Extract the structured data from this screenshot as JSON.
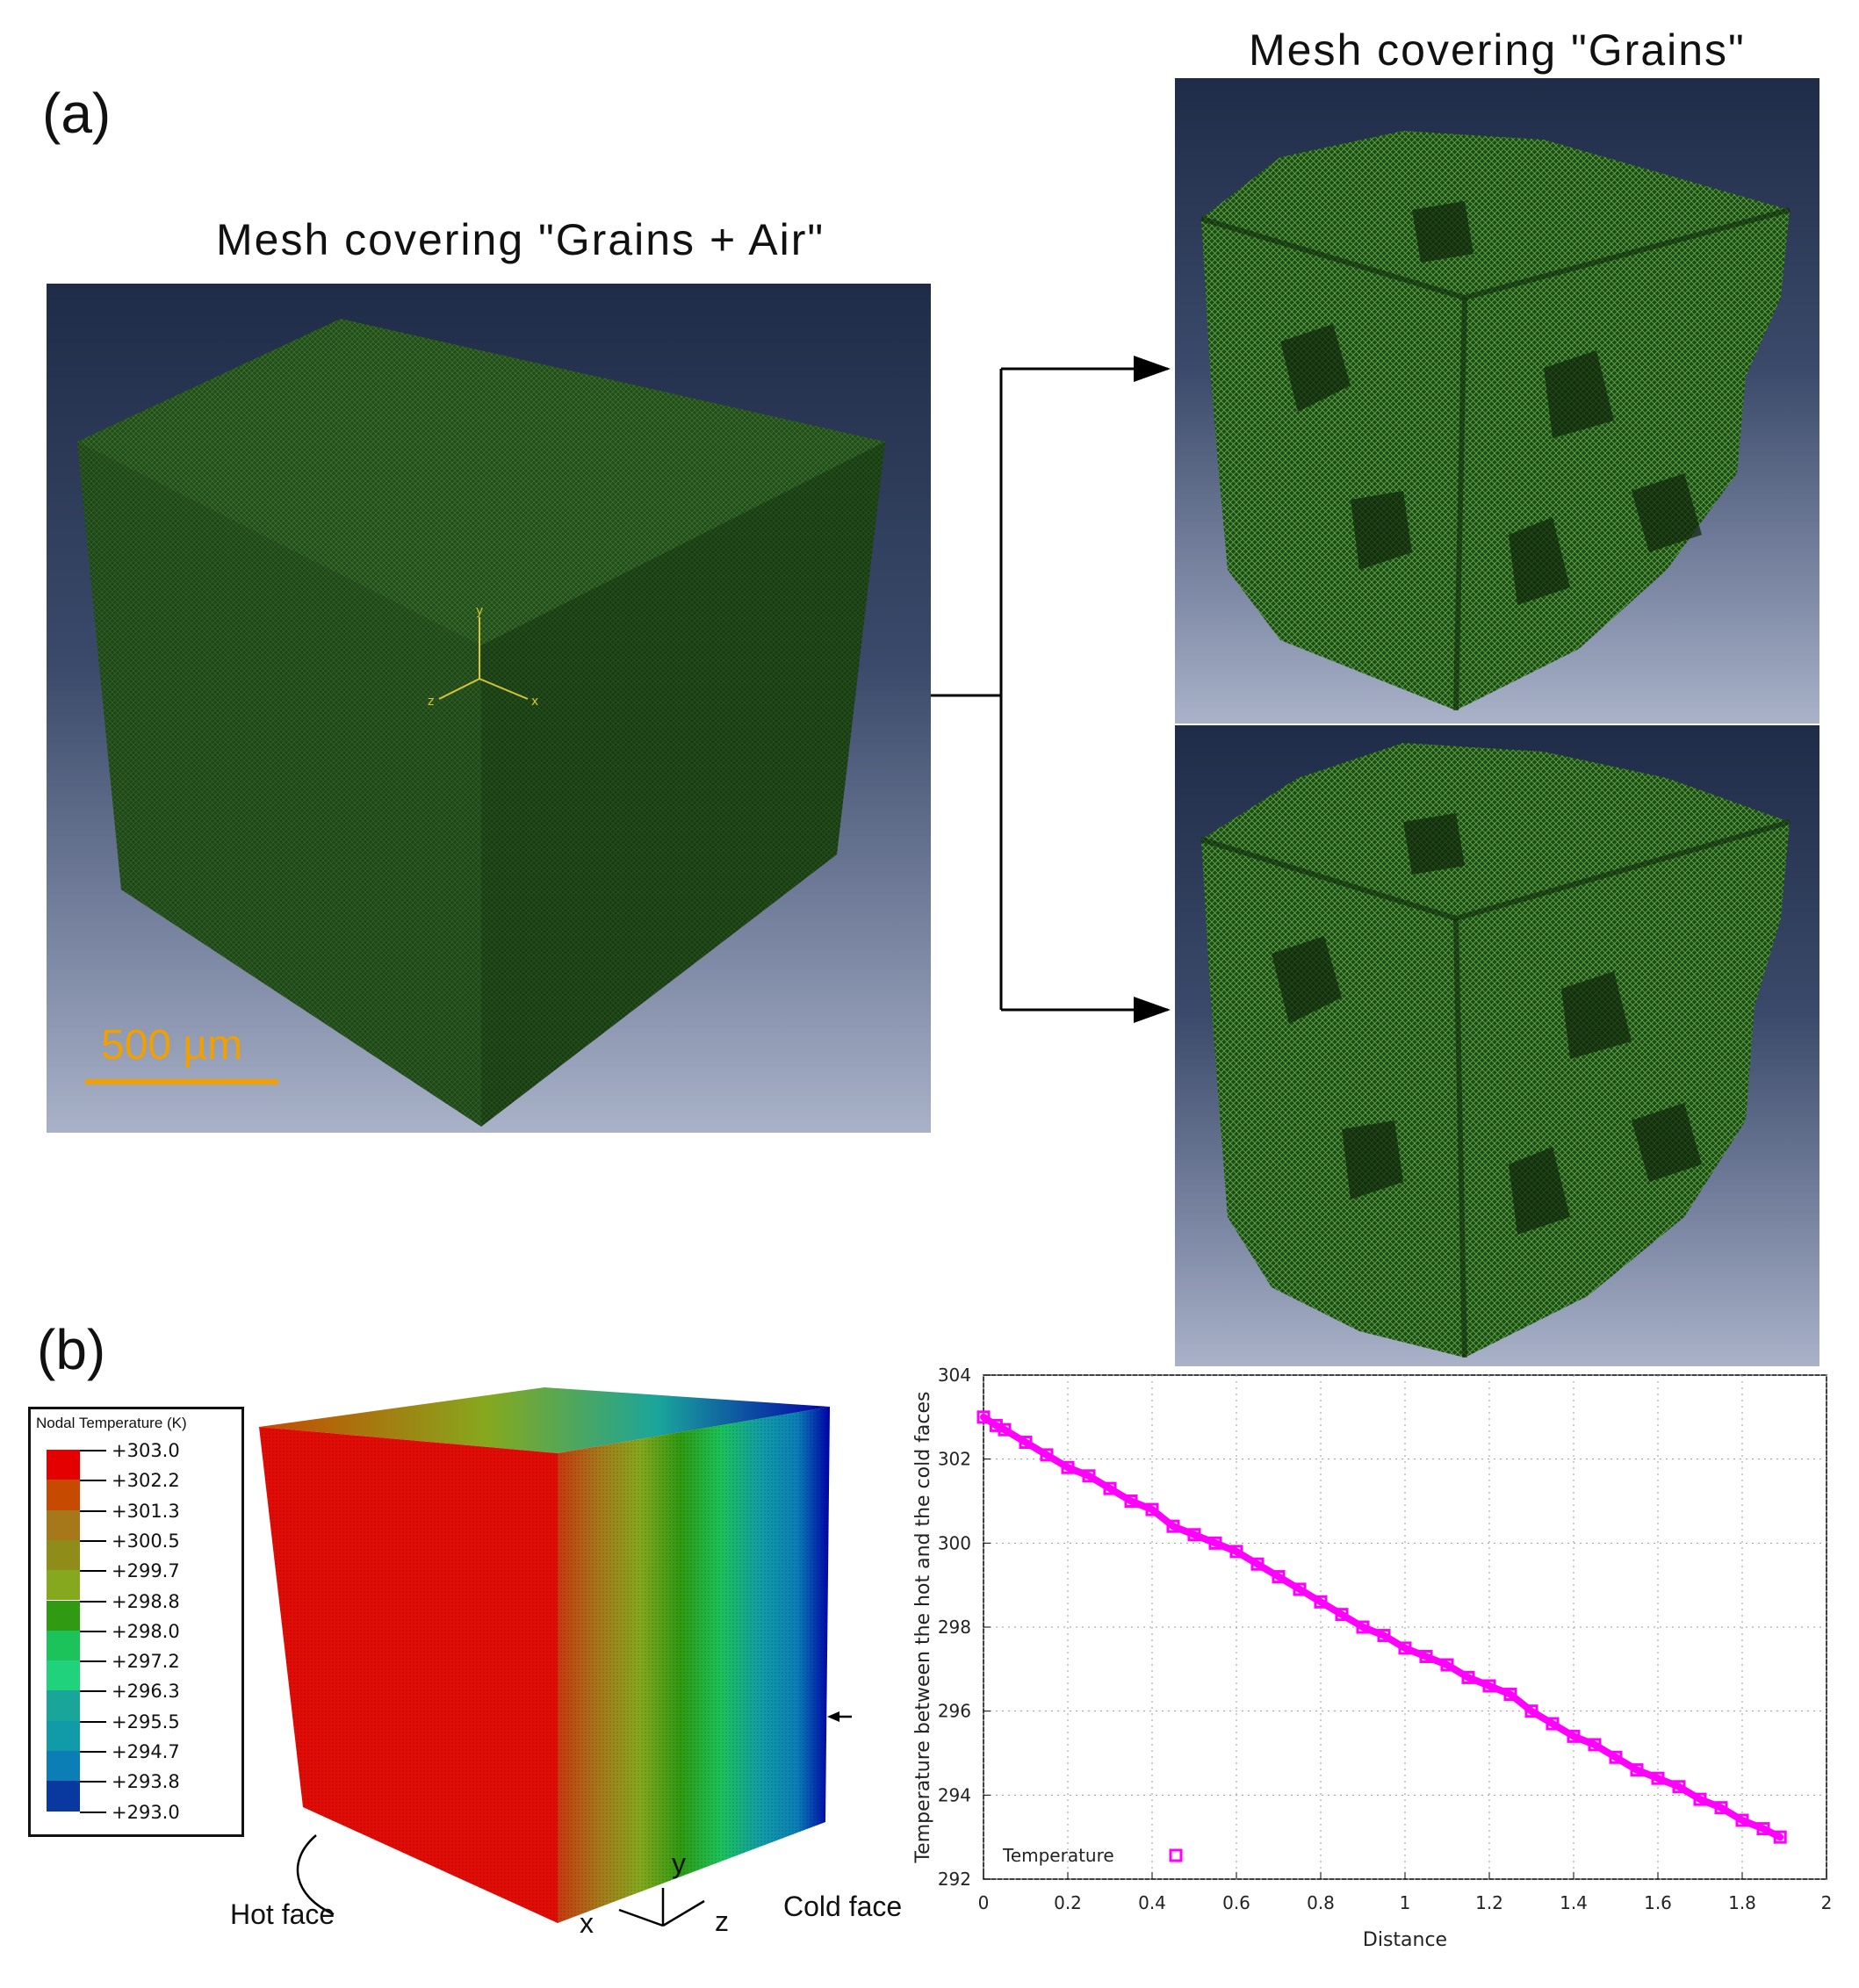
{
  "panel_a": {
    "label": "(a)",
    "left_title": "Mesh covering \"Grains + Air\"",
    "right_title": "Mesh covering \"Grains\"",
    "scale_bar": "500 µm",
    "triad_labels": [
      "y",
      "x",
      "z"
    ]
  },
  "panel_b": {
    "label": "(b)",
    "legend": {
      "title": "Nodal Temperature (K)",
      "values": [
        "+303.0",
        "+302.2",
        "+301.3",
        "+300.5",
        "+299.7",
        "+298.8",
        "+298.0",
        "+297.2",
        "+296.3",
        "+295.5",
        "+294.7",
        "+293.8",
        "+293.0"
      ],
      "colors": [
        "#e50000",
        "#c64a00",
        "#a6781a",
        "#8f8c1a",
        "#86a81e",
        "#2f9a12",
        "#1cc25a",
        "#21d27d",
        "#1aa59b",
        "#119ba8",
        "#0b7eb6",
        "#09389e",
        "#0000a8"
      ]
    },
    "hot_face_label": "Hot face",
    "cold_face_label": "Cold face",
    "axis_labels": {
      "x": "x",
      "y": "y",
      "z": "z"
    }
  },
  "chart_data": {
    "type": "scatter",
    "title": "",
    "xlabel": "Distance",
    "ylabel": "Temperature between the hot and the cold faces",
    "xlim": [
      0,
      2
    ],
    "ylim": [
      292,
      304
    ],
    "xticks": [
      "0",
      "0.2",
      "0.4",
      "0.6",
      "0.8",
      "1",
      "1.2",
      "1.4",
      "1.6",
      "1.8",
      "2"
    ],
    "yticks": [
      "292",
      "294",
      "296",
      "298",
      "300",
      "302",
      "304"
    ],
    "legend": "bottom-left",
    "series": [
      {
        "name": "Temperature",
        "color": "#ff00ff",
        "marker": "open-square",
        "x": [
          0,
          0.03,
          0.05,
          0.1,
          0.15,
          0.2,
          0.25,
          0.3,
          0.35,
          0.4,
          0.45,
          0.5,
          0.55,
          0.6,
          0.65,
          0.7,
          0.75,
          0.8,
          0.85,
          0.9,
          0.95,
          1.0,
          1.05,
          1.1,
          1.15,
          1.2,
          1.25,
          1.3,
          1.35,
          1.4,
          1.45,
          1.5,
          1.55,
          1.6,
          1.65,
          1.7,
          1.75,
          1.8,
          1.85,
          1.89
        ],
        "y": [
          303.0,
          302.8,
          302.7,
          302.4,
          302.1,
          301.8,
          301.6,
          301.3,
          301.0,
          300.8,
          300.4,
          300.2,
          300.0,
          299.8,
          299.5,
          299.2,
          298.9,
          298.6,
          298.3,
          298.0,
          297.8,
          297.5,
          297.3,
          297.1,
          296.8,
          296.6,
          296.4,
          296.0,
          295.7,
          295.4,
          295.2,
          294.9,
          294.6,
          294.4,
          294.2,
          293.9,
          293.7,
          293.4,
          293.2,
          293.0
        ]
      }
    ]
  }
}
